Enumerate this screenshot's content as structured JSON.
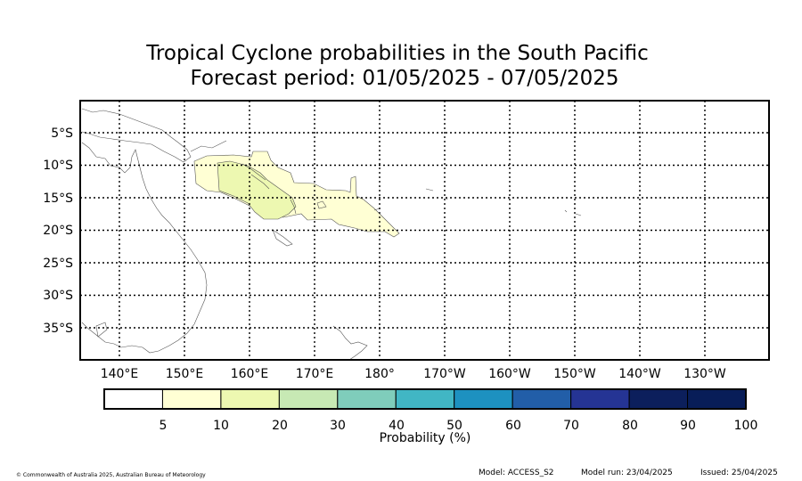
{
  "title": {
    "line1": "Tropical Cyclone probabilities in the South Pacific",
    "line2": "Forecast period: 01/05/2025 - 07/05/2025"
  },
  "map": {
    "lat_labels": [
      "5°S",
      "10°S",
      "15°S",
      "20°S",
      "25°S",
      "30°S",
      "35°S"
    ],
    "lon_labels": [
      "140°E",
      "150°E",
      "160°E",
      "170°E",
      "180°",
      "170°W",
      "160°W",
      "150°W",
      "140°W",
      "130°W"
    ],
    "gridlines": "dotted",
    "probability_regions": [
      {
        "band": "5-10",
        "area": "Solomon Islands to south of Samoa / Tonga"
      },
      {
        "band": "10-20",
        "area": "Solomon Islands – northern Vanuatu"
      }
    ]
  },
  "colorbar": {
    "label": "Probability (%)",
    "ticks": [
      "5",
      "10",
      "20",
      "30",
      "40",
      "50",
      "60",
      "70",
      "80",
      "90",
      "100"
    ],
    "colors": [
      "#ffffff",
      "#ffffd4",
      "#edf8b1",
      "#c7e9b4",
      "#7fcdbb",
      "#41b6c4",
      "#1d91c0",
      "#225ea8",
      "#253494",
      "#0c1f5c",
      "#081d58"
    ]
  },
  "footer": {
    "copyright": "© Commonwealth of Australia 2025, Australian Bureau of Meteorology",
    "model": "Model: ACCESS_S2",
    "model_run": "Model run: 23/04/2025",
    "issued": "Issued: 25/04/2025"
  }
}
